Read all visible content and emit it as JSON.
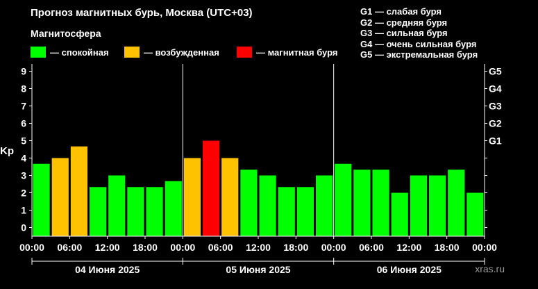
{
  "title": "Прогноз магнитных бурь, Москва (UTC+03)",
  "legend": {
    "title": "Магнитосфера",
    "items": [
      {
        "label": "— спокойная",
        "color": "#00ff00"
      },
      {
        "label": "— возбужденная",
        "color": "#ffc200"
      },
      {
        "label": "— магнитная буря",
        "color": "#ff0000"
      }
    ]
  },
  "g_scale": [
    "G1 — слабая буря",
    "G2 — средняя буря",
    "G3 — сильная буря",
    "G4 — очень сильная буря",
    "G5 — экстремальная буря"
  ],
  "watermark": "xras.ru",
  "chart_data": {
    "type": "bar",
    "ylabel": "Kp",
    "ylim": [
      0,
      9
    ],
    "yticks": [
      0,
      1,
      2,
      3,
      4,
      5,
      6,
      7,
      8,
      9
    ],
    "right_ticks": [
      {
        "kp": 5,
        "label": "G1"
      },
      {
        "kp": 6,
        "label": "G2"
      },
      {
        "kp": 7,
        "label": "G3"
      },
      {
        "kp": 8,
        "label": "G4"
      },
      {
        "kp": 9,
        "label": "G5"
      }
    ],
    "x_tick_labels": [
      "00:00",
      "06:00",
      "12:00",
      "18:00",
      "00:00",
      "06:00",
      "12:00",
      "18:00",
      "00:00",
      "06:00",
      "12:00",
      "18:00",
      "00:00"
    ],
    "days": [
      "04 Июня 2025",
      "05 Июня 2025",
      "06 Июня 2025"
    ],
    "values": [
      3.67,
      4.0,
      4.67,
      2.33,
      3.0,
      2.33,
      2.33,
      2.67,
      4.0,
      5.0,
      4.0,
      3.33,
      3.0,
      2.33,
      2.33,
      3.0,
      3.67,
      3.33,
      3.33,
      2.0,
      3.0,
      3.0,
      3.33,
      2.0
    ],
    "thresholds": {
      "quiet_below": 4,
      "storm_from": 5
    },
    "colors": {
      "quiet": "#00ff00",
      "active": "#ffc200",
      "storm": "#ff0000"
    },
    "grid": false
  }
}
